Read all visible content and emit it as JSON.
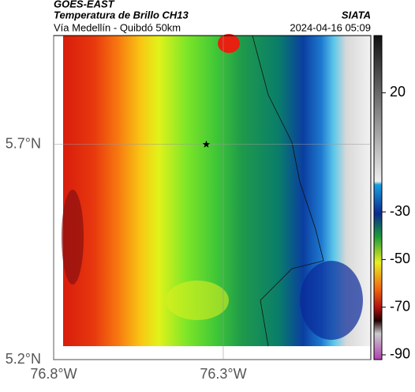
{
  "header": {
    "source": "GOES-EAST",
    "title": "Temperatura de Brillo CH13",
    "subtitle": "Vía Medellín - Quibdó 50km",
    "org": "SIATA",
    "datetime": "2024-04-16 05:09"
  },
  "map": {
    "xlim": [
      -76.8,
      -75.865
    ],
    "ylim": [
      5.2,
      5.953
    ],
    "xticks": [
      {
        "value": -76.8,
        "label": "76.8°W"
      },
      {
        "value": -76.3,
        "label": "76.3°W"
      }
    ],
    "yticks": [
      {
        "value": 5.2,
        "label": "5.2°N"
      },
      {
        "value": 5.7,
        "label": "5.7°N"
      }
    ],
    "grid": true,
    "marker": {
      "lon": -76.35,
      "lat": 5.7
    }
  },
  "colorbar": {
    "lim": [
      -92,
      44
    ],
    "ticks": [
      20,
      -30,
      -50,
      -70,
      -90
    ]
  }
}
